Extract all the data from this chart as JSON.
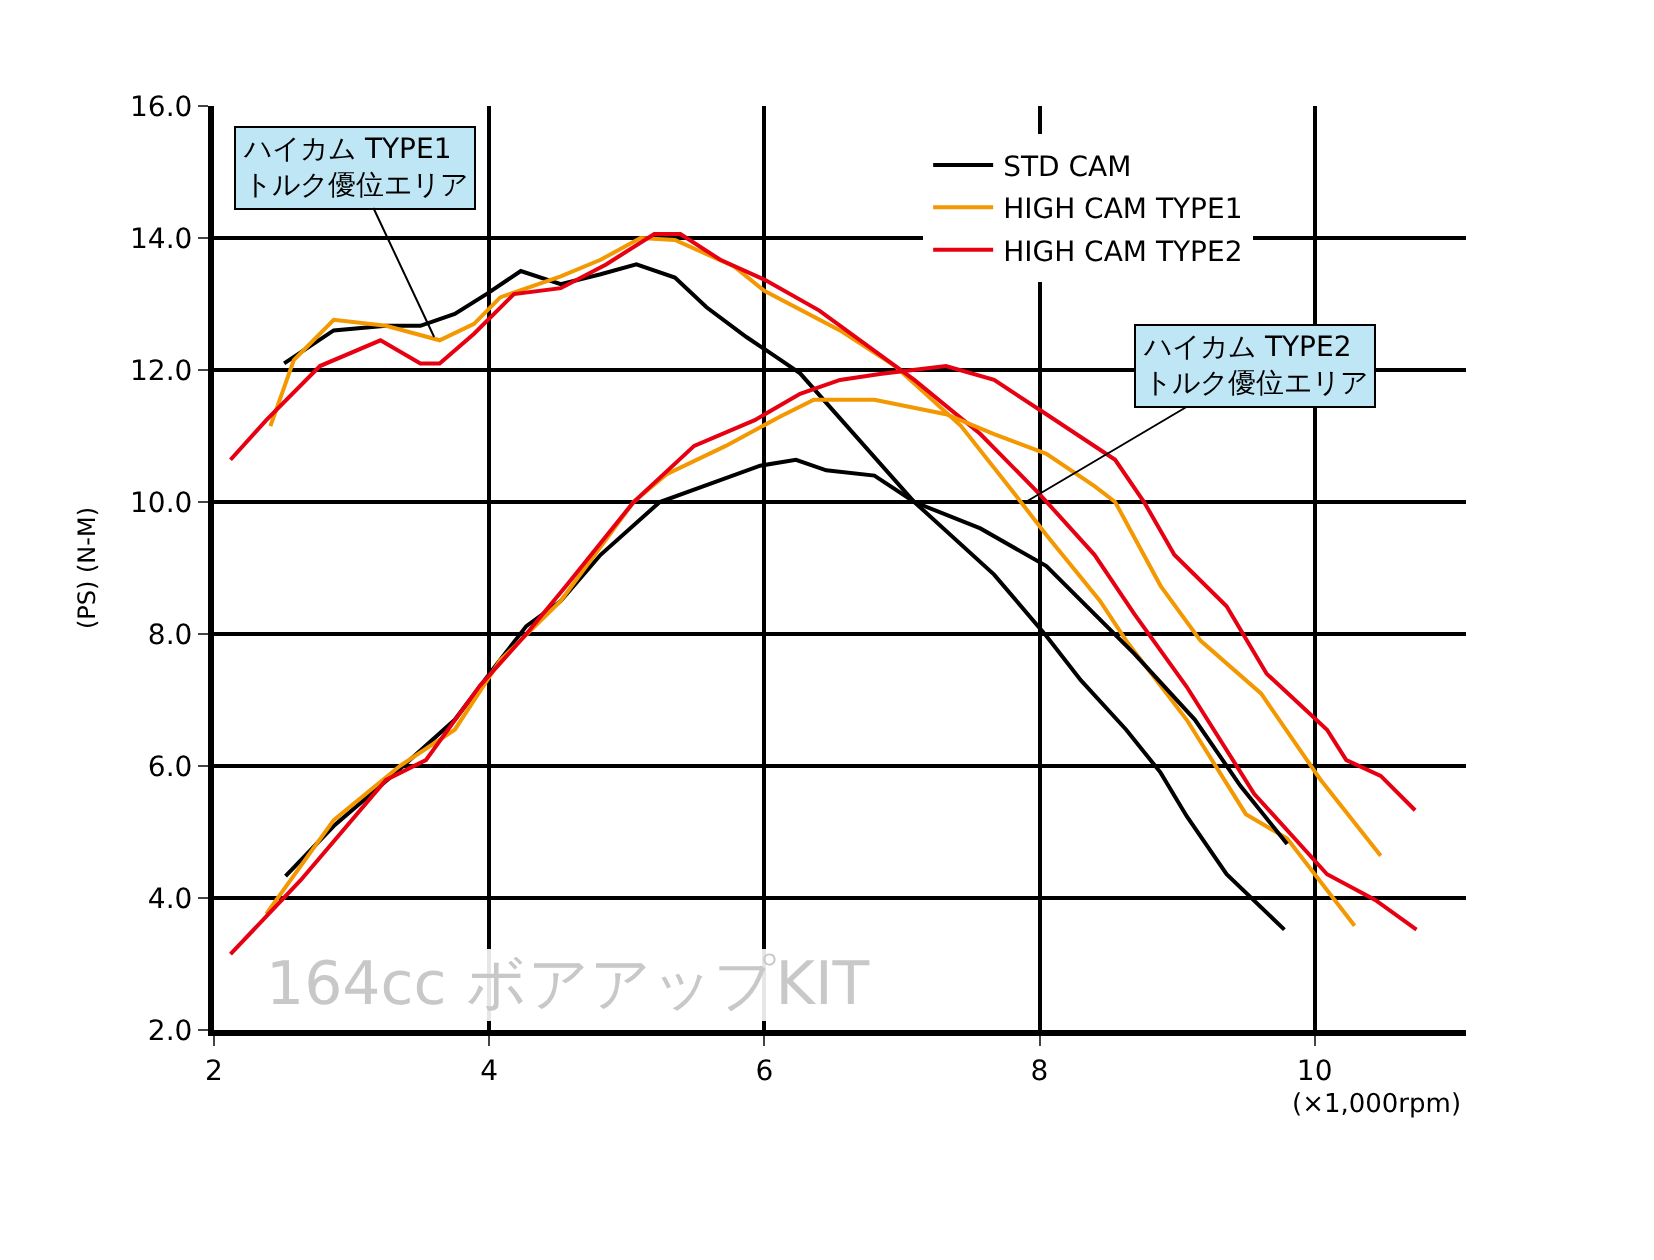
{
  "chart_data": {
    "type": "line",
    "xlabel": "(×1,000rpm)",
    "ylabel": "(PS) (N-M)",
    "xlim": [
      2,
      11.1
    ],
    "xticks": [
      2,
      4,
      6,
      8,
      10
    ],
    "ylim": [
      2,
      16
    ],
    "yticks": [
      {
        "value": 2,
        "label": "2.0"
      },
      {
        "value": 4,
        "label": "4.0"
      },
      {
        "value": 6,
        "label": "6.0"
      },
      {
        "value": 8,
        "label": "8.0"
      },
      {
        "value": 10,
        "label": "10.0"
      },
      {
        "value": 12,
        "label": "12.0"
      },
      {
        "value": 14,
        "label": "14.0"
      },
      {
        "value": 16,
        "label": "16.0"
      }
    ],
    "grid": true,
    "legend": "top right",
    "marker": "none",
    "line_style": "solid",
    "series": [
      {
        "name": "STD CAM",
        "color": "#000000",
        "x": [
          2.51,
          2.87,
          3.25,
          3.5,
          3.75,
          3.98,
          4.23,
          4.52,
          4.81,
          5.07,
          5.35,
          5.58,
          5.87,
          6.12,
          6.26,
          7.09,
          7.67,
          8.05,
          8.3,
          8.63,
          8.88,
          9.07,
          9.36,
          9.78
        ],
        "values": [
          12.1,
          12.6,
          12.67,
          12.67,
          12.85,
          13.15,
          13.5,
          13.3,
          13.45,
          13.6,
          13.4,
          12.95,
          12.5,
          12.15,
          11.95,
          10.0,
          8.9,
          7.97,
          7.3,
          6.55,
          5.9,
          5.24,
          4.36,
          3.52
        ]
      },
      {
        "name": "HIGH CAM TYPE1",
        "color": "#f39800",
        "x": [
          2.41,
          2.58,
          2.87,
          3.25,
          3.64,
          3.89,
          4.08,
          4.52,
          4.81,
          5.1,
          5.35,
          5.78,
          6.0,
          6.55,
          6.95,
          7.43,
          7.82,
          8.05,
          8.44,
          8.63,
          9.07,
          9.5,
          9.8,
          10.29
        ],
        "values": [
          11.15,
          12.15,
          12.76,
          12.67,
          12.45,
          12.7,
          13.1,
          13.42,
          13.67,
          14.0,
          13.97,
          13.57,
          13.2,
          12.6,
          12.06,
          11.15,
          10.12,
          9.5,
          8.5,
          7.9,
          6.7,
          5.27,
          4.9,
          3.58
        ]
      },
      {
        "name": "HIGH CAM TYPE2",
        "color": "#e60012",
        "x": [
          2.12,
          2.38,
          2.77,
          3.21,
          3.5,
          3.64,
          3.89,
          4.18,
          4.52,
          4.85,
          5.2,
          5.39,
          5.68,
          6.01,
          6.4,
          7.09,
          7.57,
          8.0,
          8.4,
          8.69,
          9.07,
          9.56,
          10.09,
          10.44,
          10.74
        ],
        "values": [
          10.64,
          11.24,
          12.06,
          12.45,
          12.1,
          12.1,
          12.55,
          13.15,
          13.24,
          13.6,
          14.06,
          14.06,
          13.67,
          13.36,
          12.9,
          11.85,
          11.03,
          10.12,
          9.2,
          8.3,
          7.2,
          5.58,
          4.36,
          3.97,
          3.52
        ]
      },
      {
        "color": "#000000",
        "x": [
          2.52,
          2.87,
          3.31,
          3.75,
          4.04,
          4.27,
          4.52,
          4.81,
          5.24,
          5.68,
          5.97,
          6.23,
          6.45,
          6.8,
          7.09,
          7.57,
          8.05,
          8.69,
          9.13,
          9.46,
          9.8
        ],
        "values": [
          4.33,
          5.09,
          5.88,
          6.7,
          7.5,
          8.12,
          8.5,
          9.2,
          10.0,
          10.33,
          10.55,
          10.64,
          10.48,
          10.4,
          10.0,
          9.6,
          9.03,
          7.7,
          6.7,
          5.7,
          4.82
        ]
      },
      {
        "color": "#f39800",
        "x": [
          2.38,
          2.87,
          3.35,
          3.75,
          4.08,
          4.52,
          5.05,
          5.29,
          5.72,
          6.12,
          6.36,
          6.8,
          7.32,
          7.67,
          8.05,
          8.4,
          8.55,
          8.88,
          9.17,
          9.61,
          10.04,
          10.48
        ],
        "values": [
          3.76,
          5.18,
          6.0,
          6.55,
          7.6,
          8.5,
          10.0,
          10.42,
          10.85,
          11.3,
          11.55,
          11.55,
          11.33,
          11.03,
          10.73,
          10.24,
          10.0,
          8.73,
          7.9,
          7.1,
          5.8,
          4.64
        ]
      },
      {
        "color": "#e60012",
        "x": [
          2.12,
          2.63,
          3.25,
          3.54,
          3.93,
          4.27,
          4.56,
          5.05,
          5.49,
          5.93,
          6.26,
          6.55,
          6.84,
          7.32,
          7.67,
          8.05,
          8.55,
          8.76,
          8.98,
          9.36,
          9.65,
          10.09,
          10.23,
          10.48,
          10.73
        ],
        "values": [
          3.15,
          4.27,
          5.79,
          6.09,
          7.21,
          8.0,
          8.73,
          10.0,
          10.85,
          11.24,
          11.64,
          11.85,
          11.94,
          12.06,
          11.85,
          11.33,
          10.64,
          10.0,
          9.2,
          8.42,
          7.4,
          6.55,
          6.09,
          5.85,
          5.33
        ]
      }
    ],
    "annotations": [
      {
        "text": "ハイカム TYPE1\nトルク優位エリア",
        "x": 3.6,
        "y": 12.5
      },
      {
        "text": "ハイカム TYPE2\nトルク優位エリア",
        "x": 7.9,
        "y": 10.0
      },
      "164cc ボアアップKIT"
    ]
  }
}
